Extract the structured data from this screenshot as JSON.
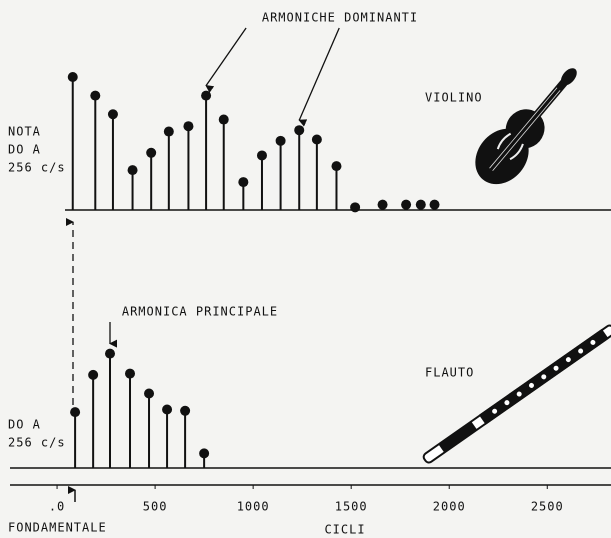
{
  "chart_data": [
    {
      "type": "stem",
      "label": [
        "NOTA",
        "DO A",
        "256 c/s"
      ],
      "instrument": "VIOLINO",
      "annotation": "ARMONICHE DOMINANTI",
      "x": [
        80,
        195,
        285,
        385,
        480,
        570,
        670,
        760,
        850,
        950,
        1045,
        1140,
        1235,
        1325,
        1425,
        1520,
        1660,
        1780,
        1855,
        1925
      ],
      "values": [
        100,
        86,
        72,
        30,
        43,
        59,
        63,
        86,
        68,
        21,
        41,
        52,
        60,
        53,
        33,
        2,
        4,
        4,
        4,
        4
      ],
      "xlim": [
        -240,
        2825
      ],
      "ylim": [
        0,
        100
      ],
      "color": "#111111"
    },
    {
      "type": "stem",
      "label": [
        "DO A",
        "256 c/s"
      ],
      "instrument": "FLAUTO",
      "annotation": "ARMONICA PRINCIPALE",
      "x": [
        92,
        184,
        270,
        372,
        469,
        561,
        653,
        750
      ],
      "values": [
        42,
        70,
        86,
        71,
        56,
        44,
        43,
        11
      ],
      "xlim": [
        -240,
        2825
      ],
      "ylim": [
        0,
        100
      ],
      "color": "#111111",
      "xlabel": "CICLI",
      "note": "FONDAMENTALE",
      "xticks": [
        {
          "value": 0,
          "label": ".0"
        },
        500,
        1000,
        1500,
        2000,
        2500
      ]
    }
  ]
}
